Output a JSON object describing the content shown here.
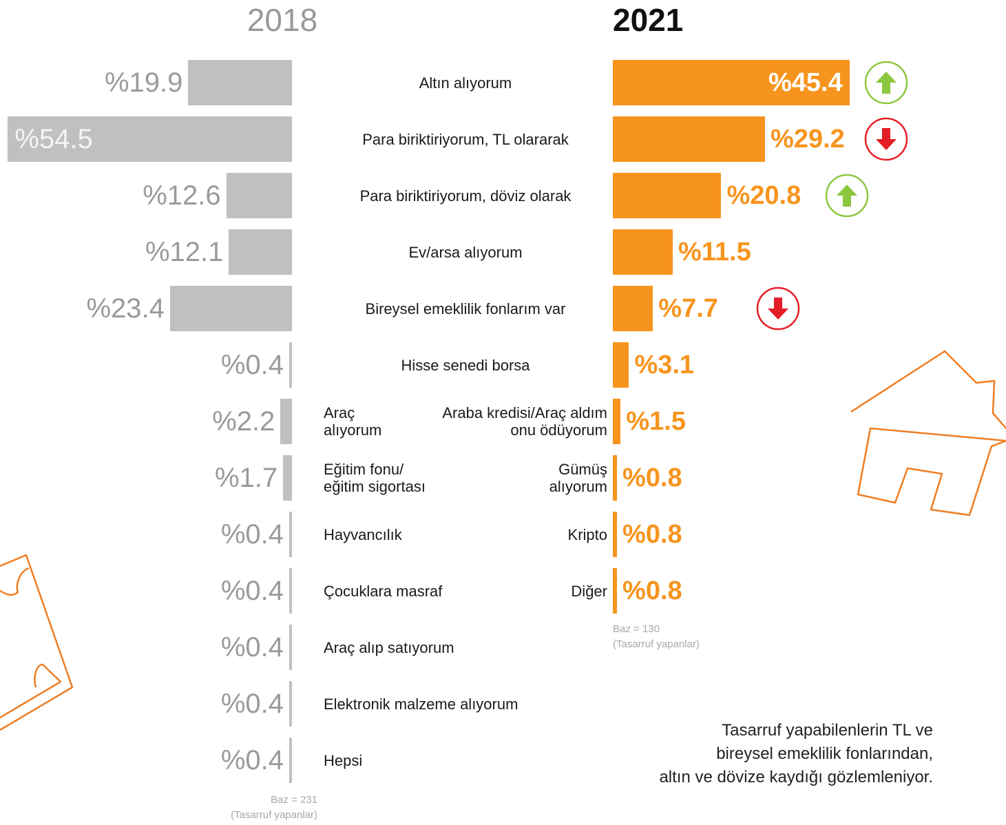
{
  "chart_data": [
    {
      "type": "bar",
      "title": "2018",
      "categories": [
        "Altın alıyorum",
        "Para biriktiriyorum, TL olararak",
        "Para biriktiriyorum, döviz olarak",
        "Ev/arsa alıyorum",
        "Bireysel emeklilik fonlarım var",
        "Hisse senedi borsa",
        "Araç\nalıyorum",
        "Eğitim fonu/\neğitim sigortası",
        "Hayvancılık",
        "Çocuklara masraf",
        "Araç alıp satıyorum",
        "Elektronik malzeme alıyorum",
        "Hepsi"
      ],
      "values": [
        19.9,
        54.5,
        12.6,
        12.1,
        23.4,
        0.4,
        2.2,
        1.7,
        0.4,
        0.4,
        0.4,
        0.4,
        0.4
      ],
      "value_labels": [
        "%19.9",
        "%54.5",
        "%12.6",
        "%12.1",
        "%23.4",
        "%0.4",
        "%2.2",
        "%1.7",
        "%0.4",
        "%0.4",
        "%0.4",
        "%0.4",
        "%0.4"
      ],
      "color": "#c0c0c1",
      "notes": [
        "Baz = 231",
        "(Tasarruf yapanlar)"
      ]
    },
    {
      "type": "bar",
      "title": "2021",
      "categories": [
        null,
        null,
        null,
        null,
        null,
        null,
        "Araba kredisi/Araç aldım\nonu ödüyorum",
        "Gümüş\nalıyorum",
        "Kripto",
        "Diğer"
      ],
      "values": [
        45.4,
        29.2,
        20.8,
        11.5,
        7.7,
        3.1,
        1.5,
        0.8,
        0.8,
        0.8
      ],
      "value_labels": [
        "%45.4",
        "%29.2",
        "%20.8",
        "%11.5",
        "%7.7",
        "%3.1",
        "%1.5",
        "%0.8",
        "%0.8",
        "%0.8"
      ],
      "color": "#f7941d",
      "notes": [
        "Baz = 130",
        "(Tasarruf yapanlar)"
      ]
    }
  ],
  "caption": "Tasarruf yapabilenlerin TL ve\nbireysel emeklilik fonlarından,\naltın ve dövize kaydığı gözlemleniyor."
}
